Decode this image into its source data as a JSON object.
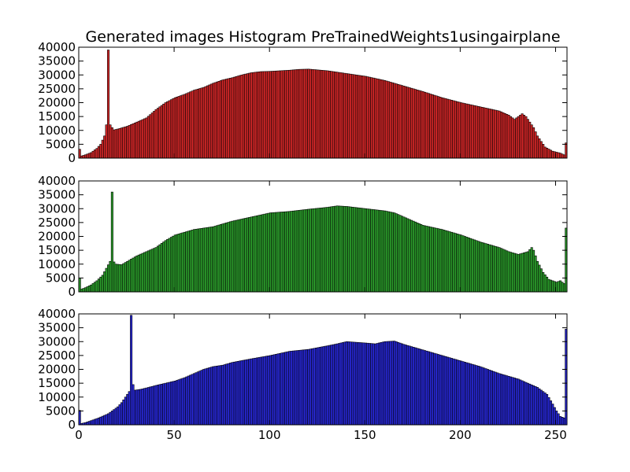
{
  "chart_data": {
    "type": "bar",
    "title": "Generated images Histogram PreTrainedWeights1usingairplane",
    "xlim": [
      0,
      256
    ],
    "ylim": [
      0,
      40000
    ],
    "xticks": [
      0,
      50,
      100,
      150,
      200,
      250
    ],
    "yticks": [
      0,
      5000,
      10000,
      15000,
      20000,
      25000,
      30000,
      35000,
      40000
    ],
    "grid": false,
    "legend": "none",
    "panels": [
      {
        "name": "red",
        "color": "#d62728",
        "anchors": [
          [
            0,
            3200
          ],
          [
            1,
            800
          ],
          [
            3,
            1200
          ],
          [
            6,
            2000
          ],
          [
            9,
            3500
          ],
          [
            11,
            5000
          ],
          [
            12,
            6500
          ],
          [
            13,
            8000
          ],
          [
            14,
            12000
          ],
          [
            15,
            39000
          ],
          [
            16,
            12000
          ],
          [
            17,
            11000
          ],
          [
            18,
            10200
          ],
          [
            20,
            10500
          ],
          [
            25,
            11500
          ],
          [
            30,
            13000
          ],
          [
            35,
            14500
          ],
          [
            40,
            17500
          ],
          [
            45,
            20000
          ],
          [
            50,
            21800
          ],
          [
            55,
            23000
          ],
          [
            60,
            24500
          ],
          [
            65,
            25500
          ],
          [
            70,
            27000
          ],
          [
            75,
            28200
          ],
          [
            80,
            29000
          ],
          [
            85,
            30000
          ],
          [
            90,
            30800
          ],
          [
            95,
            31200
          ],
          [
            100,
            31300
          ],
          [
            110,
            31700
          ],
          [
            115,
            32000
          ],
          [
            120,
            32100
          ],
          [
            125,
            31800
          ],
          [
            130,
            31500
          ],
          [
            140,
            30500
          ],
          [
            145,
            30000
          ],
          [
            150,
            29500
          ],
          [
            160,
            28000
          ],
          [
            170,
            26000
          ],
          [
            180,
            24000
          ],
          [
            190,
            21800
          ],
          [
            200,
            20000
          ],
          [
            210,
            18500
          ],
          [
            220,
            17000
          ],
          [
            225,
            15500
          ],
          [
            228,
            14000
          ],
          [
            230,
            15000
          ],
          [
            232,
            16000
          ],
          [
            234,
            15000
          ],
          [
            236,
            13000
          ],
          [
            238,
            11000
          ],
          [
            240,
            8000
          ],
          [
            242,
            6000
          ],
          [
            244,
            4000
          ],
          [
            248,
            2500
          ],
          [
            252,
            1800
          ],
          [
            254,
            1200
          ],
          [
            255,
            5500
          ]
        ]
      },
      {
        "name": "green",
        "color": "#2ca02c",
        "anchors": [
          [
            0,
            5000
          ],
          [
            1,
            1000
          ],
          [
            3,
            1500
          ],
          [
            6,
            2500
          ],
          [
            9,
            4000
          ],
          [
            12,
            6000
          ],
          [
            14,
            8500
          ],
          [
            16,
            11000
          ],
          [
            17,
            36000
          ],
          [
            18,
            10800
          ],
          [
            19,
            10000
          ],
          [
            22,
            9800
          ],
          [
            25,
            11000
          ],
          [
            30,
            13000
          ],
          [
            35,
            14500
          ],
          [
            40,
            16000
          ],
          [
            45,
            18500
          ],
          [
            50,
            20500
          ],
          [
            55,
            21500
          ],
          [
            60,
            22500
          ],
          [
            70,
            23500
          ],
          [
            80,
            25500
          ],
          [
            90,
            27000
          ],
          [
            100,
            28500
          ],
          [
            110,
            29000
          ],
          [
            120,
            29800
          ],
          [
            130,
            30500
          ],
          [
            135,
            31000
          ],
          [
            140,
            30800
          ],
          [
            150,
            30000
          ],
          [
            160,
            29200
          ],
          [
            165,
            28500
          ],
          [
            170,
            27000
          ],
          [
            175,
            25500
          ],
          [
            180,
            24000
          ],
          [
            190,
            22500
          ],
          [
            200,
            20500
          ],
          [
            210,
            18000
          ],
          [
            220,
            16000
          ],
          [
            225,
            14500
          ],
          [
            230,
            13500
          ],
          [
            235,
            14500
          ],
          [
            237,
            16000
          ],
          [
            238,
            15000
          ],
          [
            240,
            11000
          ],
          [
            243,
            7000
          ],
          [
            246,
            4500
          ],
          [
            250,
            3500
          ],
          [
            252,
            4000
          ],
          [
            254,
            3000
          ],
          [
            255,
            23000
          ]
        ]
      },
      {
        "name": "blue",
        "color": "#2828d8",
        "anchors": [
          [
            0,
            5200
          ],
          [
            1,
            500
          ],
          [
            3,
            800
          ],
          [
            6,
            1500
          ],
          [
            10,
            2500
          ],
          [
            15,
            4000
          ],
          [
            20,
            6500
          ],
          [
            22,
            8000
          ],
          [
            24,
            10000
          ],
          [
            26,
            12000
          ],
          [
            27,
            39500
          ],
          [
            28,
            14500
          ],
          [
            29,
            12500
          ],
          [
            32,
            12800
          ],
          [
            35,
            13300
          ],
          [
            40,
            14200
          ],
          [
            45,
            15000
          ],
          [
            50,
            15800
          ],
          [
            55,
            17000
          ],
          [
            60,
            18500
          ],
          [
            65,
            20000
          ],
          [
            70,
            21000
          ],
          [
            75,
            21500
          ],
          [
            80,
            22500
          ],
          [
            90,
            23800
          ],
          [
            100,
            25000
          ],
          [
            110,
            26500
          ],
          [
            120,
            27200
          ],
          [
            130,
            28500
          ],
          [
            135,
            29200
          ],
          [
            140,
            30000
          ],
          [
            150,
            29500
          ],
          [
            155,
            29200
          ],
          [
            160,
            30000
          ],
          [
            165,
            30200
          ],
          [
            170,
            29000
          ],
          [
            175,
            28000
          ],
          [
            180,
            27000
          ],
          [
            190,
            25000
          ],
          [
            200,
            23000
          ],
          [
            210,
            21000
          ],
          [
            220,
            18500
          ],
          [
            230,
            16500
          ],
          [
            235,
            15000
          ],
          [
            240,
            13500
          ],
          [
            245,
            11000
          ],
          [
            248,
            7500
          ],
          [
            250,
            5000
          ],
          [
            252,
            3000
          ],
          [
            254,
            2500
          ],
          [
            255,
            34500
          ]
        ]
      }
    ]
  }
}
